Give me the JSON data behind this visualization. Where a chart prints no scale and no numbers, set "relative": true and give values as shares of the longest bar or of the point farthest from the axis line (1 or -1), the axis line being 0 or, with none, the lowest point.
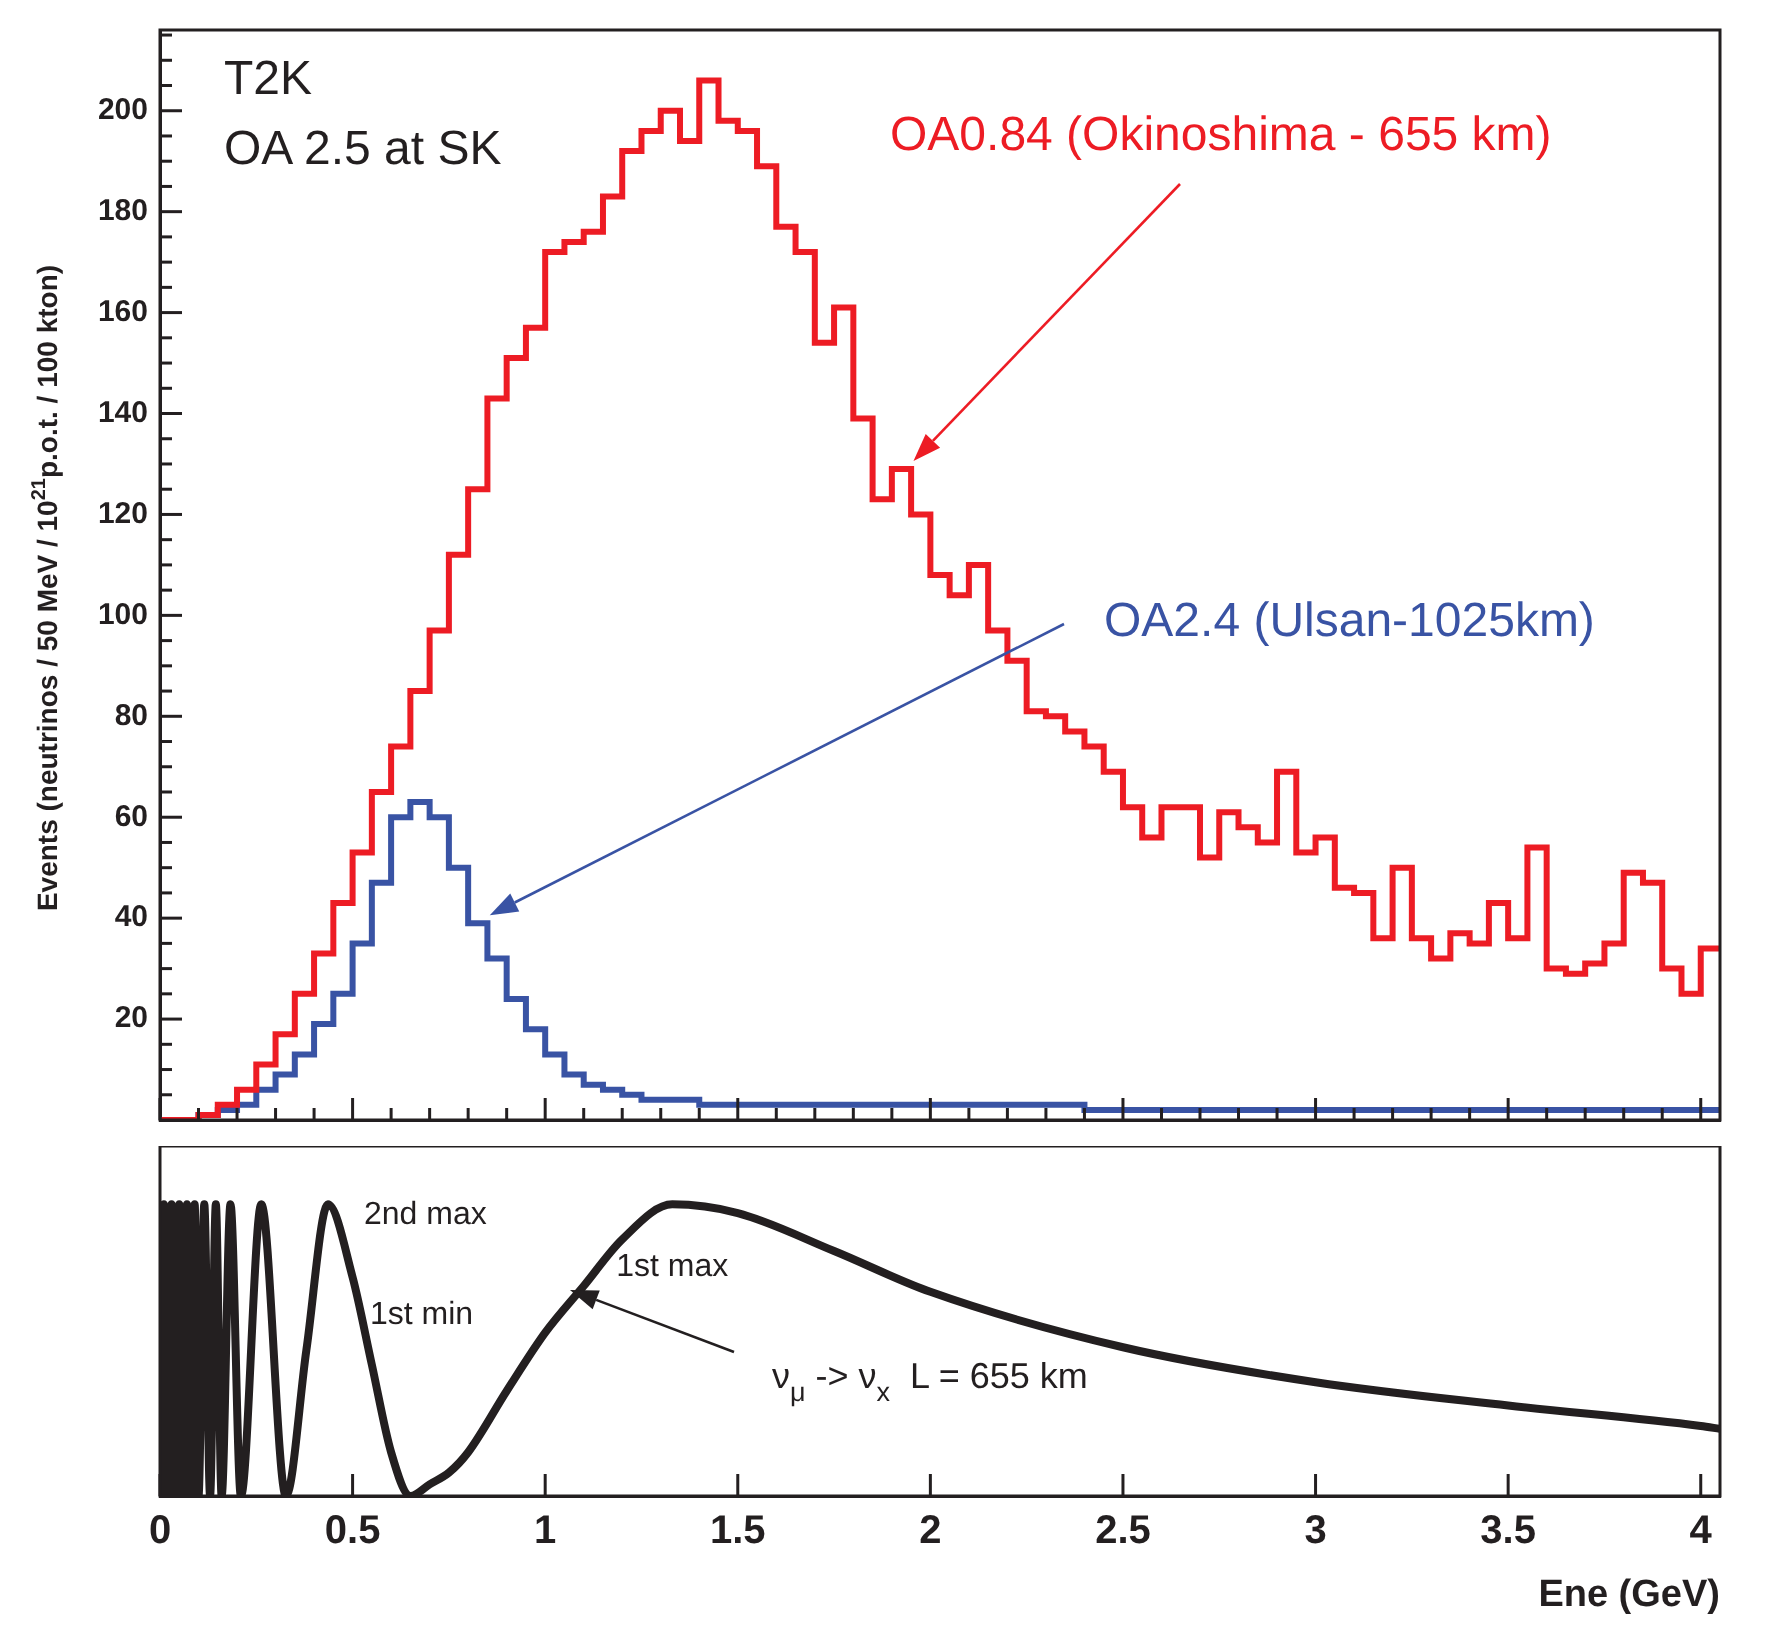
{
  "chart_data": [
    {
      "type": "histogram",
      "annotations": [
        "T2K",
        "OA 2.5 at SK"
      ],
      "ylabel": "Events (neutrinos / 50 MeV / 10$^{21}$p.o.t. / 100 kton)",
      "bins": [
        0,
        0.05,
        0.1,
        0.15,
        0.2,
        0.25,
        0.3,
        0.35,
        0.4,
        0.45,
        0.5,
        0.55,
        0.6,
        0.65,
        0.7,
        0.75,
        0.8,
        0.85,
        0.9,
        0.95,
        1,
        1.05,
        1.1,
        1.15,
        1.2,
        1.25,
        1.3,
        1.35,
        1.4,
        1.45,
        1.5,
        1.55,
        1.6,
        1.65,
        1.7,
        1.75,
        1.8,
        1.85,
        1.9,
        1.95,
        2,
        2.05,
        2.1,
        2.15,
        2.2,
        2.25,
        2.3,
        2.35,
        2.4,
        2.45,
        2.5,
        2.55,
        2.6,
        2.65,
        2.7,
        2.75,
        2.8,
        2.85,
        2.9,
        2.95,
        3,
        3.05,
        3.1,
        3.15,
        3.2,
        3.25,
        3.3,
        3.35,
        3.4,
        3.45,
        3.5,
        3.55,
        3.6,
        3.65,
        3.7,
        3.75,
        3.8,
        3.85,
        3.9,
        3.95,
        4,
        4.05
      ],
      "series": [
        {
          "name": "OA0.84 (Okinoshima - 655 km)",
          "color": "#ed1c24",
          "values": [
            0,
            0,
            1,
            3,
            6,
            11,
            17,
            25,
            33,
            43,
            53,
            65,
            74,
            85,
            97,
            112,
            125,
            143,
            151,
            157,
            172,
            174,
            176,
            183,
            192,
            196,
            200,
            194,
            206,
            198,
            196,
            189,
            177,
            172,
            154,
            161,
            139,
            123,
            129,
            120,
            108,
            104,
            110,
            97,
            91,
            81,
            80,
            77,
            74,
            69,
            62,
            56,
            62,
            62,
            52,
            61,
            58,
            55,
            69,
            53,
            56,
            46,
            45,
            36,
            50,
            36,
            32,
            37,
            35,
            43,
            36,
            54,
            30,
            29,
            31,
            35,
            49,
            47,
            30,
            25,
            34
          ]
        },
        {
          "name": "OA2.4 (Ulsan-1025km)",
          "color": "#3953a4",
          "values": [
            0,
            0,
            1,
            2,
            3,
            6,
            9,
            13,
            19,
            25,
            35,
            47,
            60,
            63,
            60,
            50,
            39,
            32,
            24,
            18,
            13,
            9,
            7,
            6,
            5,
            4,
            4,
            4,
            3,
            3,
            3,
            3,
            3,
            3,
            3,
            3,
            3,
            3,
            3,
            3,
            3,
            3,
            3,
            3,
            3,
            3,
            3,
            3,
            2,
            2,
            2,
            2,
            2,
            2,
            2,
            2,
            2,
            2,
            2,
            2,
            2,
            2,
            2,
            2,
            2,
            2,
            2,
            2,
            2,
            2,
            2,
            2,
            2,
            2,
            2,
            2,
            2,
            2,
            2,
            2,
            2
          ]
        }
      ],
      "xlim": [
        0,
        4.05
      ],
      "ylim": [
        0,
        216
      ],
      "xticks": [
        0,
        {
          "value": 0.1,
          "label": null
        },
        {
          "value": 0.2,
          "label": null
        },
        {
          "value": 0.3,
          "label": null
        },
        {
          "value": 0.4,
          "label": null
        },
        0.5,
        {
          "value": 0.6,
          "label": null
        },
        {
          "value": 0.7,
          "label": null
        },
        {
          "value": 0.8,
          "label": null
        },
        {
          "value": 0.9,
          "label": null
        },
        1,
        {
          "value": 1.1,
          "label": null
        },
        {
          "value": 1.2,
          "label": null
        },
        {
          "value": 1.3,
          "label": null
        },
        {
          "value": 1.4,
          "label": null
        },
        1.5,
        {
          "value": 1.6,
          "label": null
        },
        {
          "value": 1.7,
          "label": null
        },
        {
          "value": 1.8,
          "label": null
        },
        {
          "value": 1.9,
          "label": null
        },
        2,
        {
          "value": 2.1,
          "label": null
        },
        {
          "value": 2.2,
          "label": null
        },
        {
          "value": 2.3,
          "label": null
        },
        {
          "value": 2.4,
          "label": null
        },
        2.5,
        {
          "value": 2.6,
          "label": null
        },
        {
          "value": 2.7,
          "label": null
        },
        {
          "value": 2.8,
          "label": null
        },
        {
          "value": 2.9,
          "label": null
        },
        3,
        {
          "value": 3.1,
          "label": null
        },
        {
          "value": 3.2,
          "label": null
        },
        {
          "value": 3.3,
          "label": null
        },
        {
          "value": 3.4,
          "label": null
        },
        3.5,
        {
          "value": 3.6,
          "label": null
        },
        {
          "value": 3.7,
          "label": null
        },
        {
          "value": 3.8,
          "label": null
        },
        {
          "value": 3.9,
          "label": null
        },
        4
      ],
      "yticks": [
        {
          "value": 5,
          "label": null
        },
        {
          "value": 10,
          "label": null
        },
        {
          "value": 15,
          "label": null
        },
        20,
        {
          "value": 25,
          "label": null
        },
        {
          "value": 30,
          "label": null
        },
        {
          "value": 35,
          "label": null
        },
        40,
        {
          "value": 45,
          "label": null
        },
        {
          "value": 50,
          "label": null
        },
        {
          "value": 55,
          "label": null
        },
        60,
        {
          "value": 65,
          "label": null
        },
        {
          "value": 70,
          "label": null
        },
        {
          "value": 75,
          "label": null
        },
        80,
        {
          "value": 85,
          "label": null
        },
        {
          "value": 90,
          "label": null
        },
        {
          "value": 95,
          "label": null
        },
        100,
        {
          "value": 105,
          "label": null
        },
        {
          "value": 110,
          "label": null
        },
        {
          "value": 115,
          "label": null
        },
        120,
        {
          "value": 125,
          "label": null
        },
        {
          "value": 130,
          "label": null
        },
        {
          "value": 135,
          "label": null
        },
        140,
        {
          "value": 145,
          "label": null
        },
        {
          "value": 150,
          "label": null
        },
        {
          "value": 155,
          "label": null
        },
        160,
        {
          "value": 165,
          "label": null
        },
        {
          "value": 170,
          "label": null
        },
        {
          "value": 175,
          "label": null
        },
        180,
        {
          "value": 185,
          "label": null
        },
        {
          "value": 190,
          "label": null
        },
        {
          "value": 195,
          "label": null
        },
        200,
        {
          "value": 205,
          "label": null
        },
        {
          "value": 210,
          "label": null
        },
        {
          "value": 215,
          "label": null
        }
      ],
      "tick_labels": "y"
    },
    {
      "type": "line",
      "relative": true,
      "xlabel": "Ene (GeV)",
      "color": "#231f20",
      "marker": "none",
      "x": [
        0,
        0.01,
        0.02,
        0.03,
        0.04,
        0.05,
        0.06,
        0.07,
        0.08,
        0.09,
        0.1,
        0.115,
        0.13,
        0.145,
        0.16,
        0.183,
        0.21,
        0.263,
        0.327,
        0.38,
        0.436,
        0.5,
        0.55,
        0.6,
        0.65,
        0.7,
        0.75,
        0.8,
        0.9,
        1,
        1.1,
        1.2,
        1.33,
        1.5,
        1.75,
        2,
        2.5,
        3,
        3.5,
        4,
        4.05
      ],
      "values": [
        0,
        1,
        0,
        1,
        0,
        1,
        0,
        1,
        0,
        1,
        0,
        1,
        0,
        1,
        0,
        1,
        0,
        1,
        0,
        0.5,
        1,
        0.75,
        0.45,
        0.15,
        0,
        0.04,
        0.08,
        0.15,
        0.36,
        0.56,
        0.72,
        0.88,
        1,
        0.97,
        0.84,
        0.7,
        0.51,
        0.39,
        0.31,
        0.24,
        0.23
      ],
      "annotations": [
        {
          "text": "2nd max",
          "x": 0.436,
          "y": 1
        },
        {
          "text": "1st max",
          "x": 1.33,
          "y": 1
        },
        "1st min",
        "ν$_{μ}$ -> ν$_{x}$  L = 655 km"
      ],
      "xlim": [
        0,
        4.05
      ],
      "xticks": [
        0,
        0.5,
        1,
        1.5,
        2,
        2.5,
        3,
        3.5,
        4
      ],
      "tick_labels": "x"
    }
  ]
}
